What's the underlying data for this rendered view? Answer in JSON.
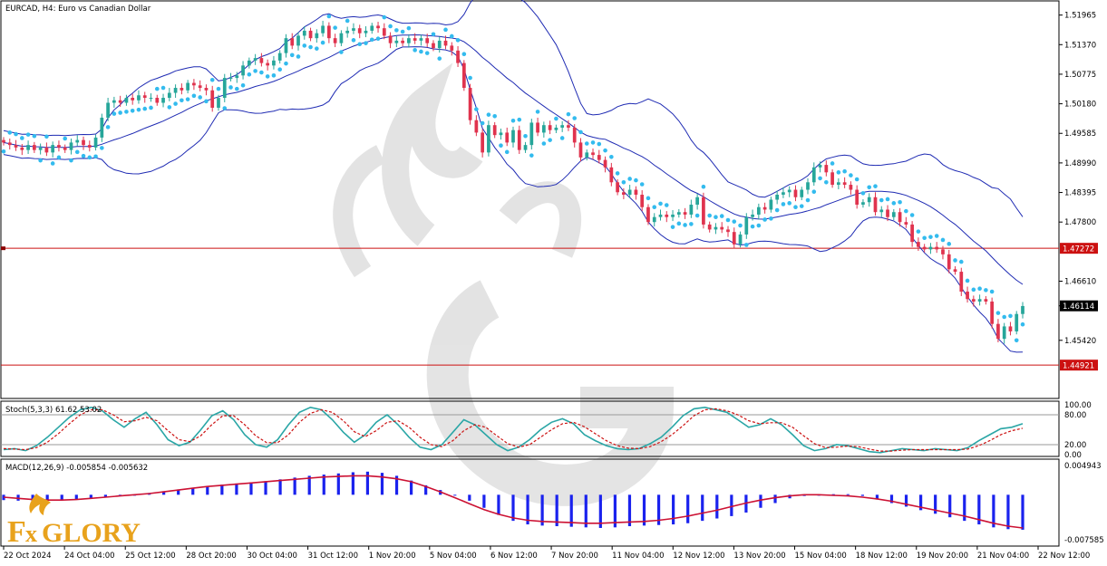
{
  "window": {
    "title": "EURCAD, H4:  Euro vs Canadian Dollar",
    "watermark_logo": "FxGlory"
  },
  "colors": {
    "bull": "#26a69a",
    "bear": "#e0334e",
    "bands": "#1f2bb3",
    "psar": "#33bbee",
    "hline": "#cc1111",
    "stoch_main": "#2aa6a6",
    "stoch_signal": "#cc1111",
    "macd_hist": "#1a22ee",
    "macd_signal": "#cc1133"
  },
  "chart_data": [
    {
      "type": "candlestick",
      "panel": "price",
      "ylim": [
        1.4425,
        1.5225
      ],
      "y_ticks": [
        "1.51965",
        "1.51370",
        "1.50775",
        "1.50180",
        "1.49585",
        "1.48990",
        "1.48395",
        "1.47800",
        "1.47272",
        "1.46610",
        "1.46114",
        "1.45420",
        "1.44921"
      ],
      "current_price": "1.46114",
      "levels": [
        {
          "value": 1.47272,
          "label": "1.47272"
        },
        {
          "value": 1.44921,
          "label": "1.44921"
        }
      ],
      "x_labels": [
        "22 Oct 2024",
        "24 Oct 04:00",
        "25 Oct 12:00",
        "28 Oct 20:00",
        "30 Oct 04:00",
        "31 Oct 12:00",
        "1 Nov 20:00",
        "5 Nov 04:00",
        "6 Nov 12:00",
        "7 Nov 20:00",
        "11 Nov 04:00",
        "12 Nov 12:00",
        "13 Nov 20:00",
        "15 Nov 04:00",
        "18 Nov 12:00",
        "19 Nov 20:00",
        "21 Nov 04:00",
        "22 Nov 12:00"
      ],
      "close": [
        1.494,
        1.4935,
        1.493,
        1.4925,
        1.4935,
        1.4925,
        1.493,
        1.492,
        1.4935,
        1.493,
        1.4925,
        1.494,
        1.4945,
        1.4935,
        1.493,
        1.495,
        1.499,
        1.502,
        1.5025,
        1.502,
        1.503,
        1.5025,
        1.5035,
        1.503,
        1.503,
        1.502,
        1.503,
        1.504,
        1.505,
        1.5045,
        1.506,
        1.5055,
        1.505,
        1.5045,
        1.501,
        1.503,
        1.507,
        1.507,
        1.5075,
        1.5095,
        1.5105,
        1.511,
        1.51,
        1.5095,
        1.5105,
        1.512,
        1.515,
        1.5135,
        1.5155,
        1.5165,
        1.515,
        1.516,
        1.5175,
        1.515,
        1.514,
        1.516,
        1.5165,
        1.517,
        1.516,
        1.5165,
        1.5175,
        1.517,
        1.5155,
        1.514,
        1.5145,
        1.514,
        1.515,
        1.5145,
        1.515,
        1.514,
        1.513,
        1.5145,
        1.5135,
        1.5125,
        1.51,
        1.505,
        1.4985,
        1.496,
        1.492,
        1.4975,
        1.4955,
        1.496,
        1.494,
        1.4965,
        1.4925,
        1.4935,
        1.498,
        1.496,
        1.4975,
        1.4965,
        1.497,
        1.4975,
        1.497,
        1.494,
        1.491,
        1.492,
        1.4915,
        1.4905,
        1.489,
        1.486,
        1.484,
        1.4835,
        1.4845,
        1.4835,
        1.481,
        1.478,
        1.479,
        1.4795,
        1.479,
        1.4795,
        1.48,
        1.4795,
        1.4815,
        1.483,
        1.4775,
        1.4765,
        1.477,
        1.4765,
        1.476,
        1.4735,
        1.4755,
        1.479,
        1.4795,
        1.481,
        1.4805,
        1.4825,
        1.4835,
        1.484,
        1.4845,
        1.483,
        1.4845,
        1.486,
        1.489,
        1.4895,
        1.488,
        1.4855,
        1.486,
        1.4855,
        1.4845,
        1.4815,
        1.482,
        1.483,
        1.48,
        1.4805,
        1.479,
        1.48,
        1.478,
        1.4775,
        1.474,
        1.473,
        1.4725,
        1.473,
        1.4725,
        1.4715,
        1.4685,
        1.468,
        1.464,
        1.4625,
        1.462,
        1.4625,
        1.462,
        1.4575,
        1.4545,
        1.457,
        1.456,
        1.4595,
        1.4611
      ]
    },
    {
      "type": "line",
      "panel": "stochastic",
      "title": "Stoch(5,3,3) 61.62 53.02",
      "ylim": [
        0,
        100
      ],
      "y_ticks": [
        "100.00",
        "80.00",
        "20.00",
        "0.00"
      ],
      "levels": [
        80,
        20
      ],
      "series": [
        {
          "name": "Stoch(5,3,3)",
          "values": [
            10,
            12,
            8,
            18,
            35,
            55,
            75,
            90,
            95,
            88,
            70,
            55,
            72,
            85,
            60,
            30,
            18,
            25,
            50,
            78,
            88,
            70,
            40,
            20,
            15,
            30,
            60,
            85,
            95,
            90,
            70,
            45,
            25,
            40,
            65,
            80,
            60,
            35,
            15,
            10,
            20,
            45,
            70,
            60,
            40,
            20,
            8,
            15,
            30,
            50,
            65,
            72,
            62,
            40,
            28,
            18,
            12,
            10,
            12,
            22,
            35,
            55,
            78,
            92,
            95,
            90,
            85,
            70,
            55,
            60,
            72,
            60,
            40,
            18,
            8,
            12,
            20,
            18,
            12,
            6,
            4,
            8,
            12,
            10,
            8,
            12,
            10,
            8,
            14,
            28,
            40,
            52,
            55,
            62
          ]
        },
        {
          "name": "",
          "values": [
            12,
            11,
            10,
            14,
            25,
            42,
            62,
            80,
            90,
            90,
            80,
            66,
            68,
            75,
            68,
            48,
            30,
            26,
            38,
            60,
            78,
            78,
            60,
            38,
            24,
            24,
            40,
            65,
            83,
            90,
            85,
            68,
            46,
            36,
            48,
            65,
            68,
            55,
            35,
            20,
            16,
            28,
            48,
            60,
            55,
            38,
            22,
            15,
            20,
            35,
            50,
            62,
            65,
            56,
            42,
            28,
            18,
            13,
            12,
            16,
            26,
            40,
            58,
            78,
            90,
            92,
            88,
            80,
            68,
            62,
            64,
            64,
            55,
            38,
            22,
            14,
            15,
            17,
            16,
            11,
            7,
            7,
            9,
            10,
            10,
            10,
            10,
            10,
            11,
            18,
            28,
            40,
            48,
            53
          ]
        }
      ]
    },
    {
      "type": "bar",
      "panel": "macd",
      "title": "MACD(12,26,9) -0.005854 -0.005632",
      "ylim": [
        -0.0082,
        0.0054
      ],
      "y_ticks": [
        "0.004943",
        "-0.007585"
      ],
      "series": [
        {
          "name": "MACD(12,26,9)",
          "values": [
            -0.0009,
            -0.001,
            -0.0011,
            -0.001,
            -0.0009,
            -0.0008,
            -0.0006,
            -0.0004,
            -0.0002,
            0.0,
            0.0003,
            0.0006,
            0.0009,
            0.0012,
            0.0015,
            0.0017,
            0.0019,
            0.0021,
            0.0023,
            0.0026,
            0.0029,
            0.0032,
            0.0034,
            0.0036,
            0.0038,
            0.0039,
            0.0037,
            0.0032,
            0.0024,
            0.0016,
            0.0008,
            0.0,
            -0.001,
            -0.0022,
            -0.0034,
            -0.0044,
            -0.005,
            -0.0052,
            -0.0053,
            -0.0054,
            -0.0055,
            -0.0056,
            -0.0055,
            -0.0053,
            -0.0052,
            -0.0051,
            -0.005,
            -0.0048,
            -0.0044,
            -0.004,
            -0.0036,
            -0.003,
            -0.0022,
            -0.0014,
            -0.0006,
            -0.0002,
            0.0,
            0.0001,
            0.0001,
            -0.0002,
            -0.0008,
            -0.0014,
            -0.002,
            -0.0026,
            -0.0032,
            -0.0038,
            -0.0044,
            -0.005,
            -0.0055,
            -0.0058,
            -0.0059
          ]
        },
        {
          "name": "",
          "values": [
            -0.0004,
            -0.0006,
            -0.0008,
            -0.0009,
            -0.0009,
            -0.0008,
            -0.0006,
            -0.0004,
            -0.0002,
            0.0,
            0.0002,
            0.0005,
            0.0008,
            0.0011,
            0.0014,
            0.0016,
            0.0018,
            0.002,
            0.0022,
            0.0024,
            0.0026,
            0.0028,
            0.003,
            0.0031,
            0.0032,
            0.0032,
            0.003,
            0.0027,
            0.0022,
            0.0014,
            0.0005,
            -0.0005,
            -0.0015,
            -0.0025,
            -0.0033,
            -0.0039,
            -0.0043,
            -0.0045,
            -0.0046,
            -0.0047,
            -0.0048,
            -0.0048,
            -0.0047,
            -0.0046,
            -0.0045,
            -0.0043,
            -0.004,
            -0.0036,
            -0.0031,
            -0.0026,
            -0.002,
            -0.0014,
            -0.0009,
            -0.0005,
            -0.0002,
            0.0,
            0.0,
            -0.0001,
            -0.0002,
            -0.0004,
            -0.0007,
            -0.0011,
            -0.0016,
            -0.0021,
            -0.0026,
            -0.0031,
            -0.0036,
            -0.0042,
            -0.0048,
            -0.0053,
            -0.0056
          ]
        }
      ]
    }
  ]
}
